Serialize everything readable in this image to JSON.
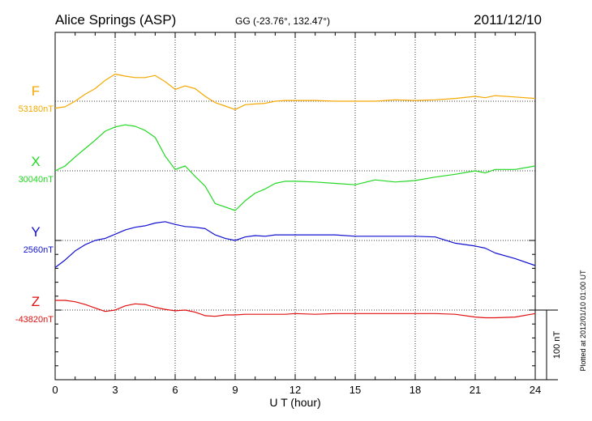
{
  "header": {
    "station": "Alice Springs (ASP)",
    "coords": "GG (-23.76°, 132.47°)",
    "date": "2011/12/10"
  },
  "footer": {
    "plotted_at": "Plotted at 2012/01/10 01:00 UT",
    "scale_label": "100 nT"
  },
  "chart_data": {
    "type": "line",
    "title": "Alice Springs (ASP)",
    "xlabel": "U T (hour)",
    "ylabel": "",
    "xlim": [
      0,
      24
    ],
    "xticks": [
      0,
      3,
      6,
      9,
      12,
      15,
      18,
      21,
      24
    ],
    "grid": true,
    "scale_bar_nT": 100,
    "series": [
      {
        "name": "F",
        "baseline_label": "53180nT",
        "baseline": 53180,
        "color": "#f5a800",
        "x": [
          0,
          0.5,
          1,
          1.5,
          2,
          2.5,
          3,
          3.5,
          4,
          4.5,
          5,
          5.5,
          6,
          6.5,
          7,
          7.5,
          8,
          8.5,
          9,
          9.5,
          10,
          10.5,
          11,
          11.5,
          12,
          13,
          14,
          15,
          16,
          17,
          18,
          19,
          20,
          21,
          21.5,
          22,
          23,
          24
        ],
        "y": [
          53170,
          53172,
          53180,
          53190,
          53198,
          53210,
          53219,
          53216,
          53214,
          53214,
          53217,
          53208,
          53197,
          53202,
          53198,
          53187,
          53178,
          53173,
          53168,
          53175,
          53176,
          53177,
          53180,
          53181,
          53181,
          53181,
          53180,
          53180,
          53180,
          53182,
          53181,
          53182,
          53184,
          53187,
          53185,
          53188,
          53186,
          53184
        ]
      },
      {
        "name": "X",
        "baseline_label": "30040nT",
        "baseline": 30040,
        "color": "#22d822",
        "x": [
          0,
          0.5,
          1,
          1.5,
          2,
          2.5,
          3,
          3.5,
          4,
          4.5,
          5,
          5.5,
          6,
          6.5,
          7,
          7.5,
          8,
          8.5,
          9,
          9.5,
          10,
          10.5,
          11,
          11.5,
          12,
          13,
          14,
          15,
          16,
          17,
          18,
          19,
          20,
          21,
          21.5,
          22,
          23,
          24
        ],
        "y": [
          30040,
          30047,
          30060,
          30072,
          30084,
          30097,
          30103,
          30106,
          30104,
          30098,
          30088,
          30061,
          30042,
          30047,
          30032,
          30018,
          29993,
          29988,
          29983,
          29997,
          30008,
          30014,
          30022,
          30025,
          30025,
          30024,
          30022,
          30020,
          30027,
          30024,
          30026,
          30031,
          30035,
          30040,
          30037,
          30042,
          30042,
          30047
        ]
      },
      {
        "name": "Y",
        "baseline_label": "2560nT",
        "baseline": 2560,
        "color": "#1010d0",
        "x": [
          0,
          0.5,
          1,
          1.5,
          2,
          2.5,
          3,
          3.5,
          4,
          4.5,
          5,
          5.5,
          6,
          6.5,
          7,
          7.5,
          8,
          8.5,
          9,
          9.5,
          10,
          10.5,
          11,
          11.5,
          12,
          13,
          14,
          15,
          16,
          17,
          18,
          19,
          20,
          21,
          21.5,
          22,
          23,
          24
        ],
        "y": [
          2521,
          2532,
          2545,
          2554,
          2560,
          2563,
          2569,
          2575,
          2579,
          2581,
          2585,
          2587,
          2583,
          2580,
          2579,
          2577,
          2568,
          2563,
          2560,
          2565,
          2567,
          2566,
          2568,
          2568,
          2568,
          2568,
          2568,
          2566,
          2566,
          2566,
          2566,
          2565,
          2556,
          2552,
          2549,
          2542,
          2534,
          2524
        ]
      },
      {
        "name": "Z",
        "baseline_label": "-43820nT",
        "baseline": -43820,
        "color": "#e01010",
        "x": [
          0,
          0.5,
          1,
          1.5,
          2,
          2.5,
          3,
          3.5,
          4,
          4.5,
          5,
          5.5,
          6,
          6.5,
          7,
          7.5,
          8,
          8.5,
          9,
          9.5,
          10,
          10.5,
          11,
          11.5,
          12,
          13,
          14,
          15,
          16,
          17,
          18,
          19,
          20,
          21,
          21.5,
          22,
          23,
          24
        ],
        "y": [
          -43806,
          -43806,
          -43808,
          -43812,
          -43817,
          -43822,
          -43820,
          -43814,
          -43811,
          -43812,
          -43816,
          -43819,
          -43821,
          -43820,
          -43823,
          -43828,
          -43829,
          -43827,
          -43827,
          -43826,
          -43826,
          -43826,
          -43826,
          -43826,
          -43825,
          -43826,
          -43825,
          -43825,
          -43825,
          -43825,
          -43825,
          -43825,
          -43826,
          -43830,
          -43831,
          -43831,
          -43830,
          -43825
        ]
      }
    ]
  }
}
